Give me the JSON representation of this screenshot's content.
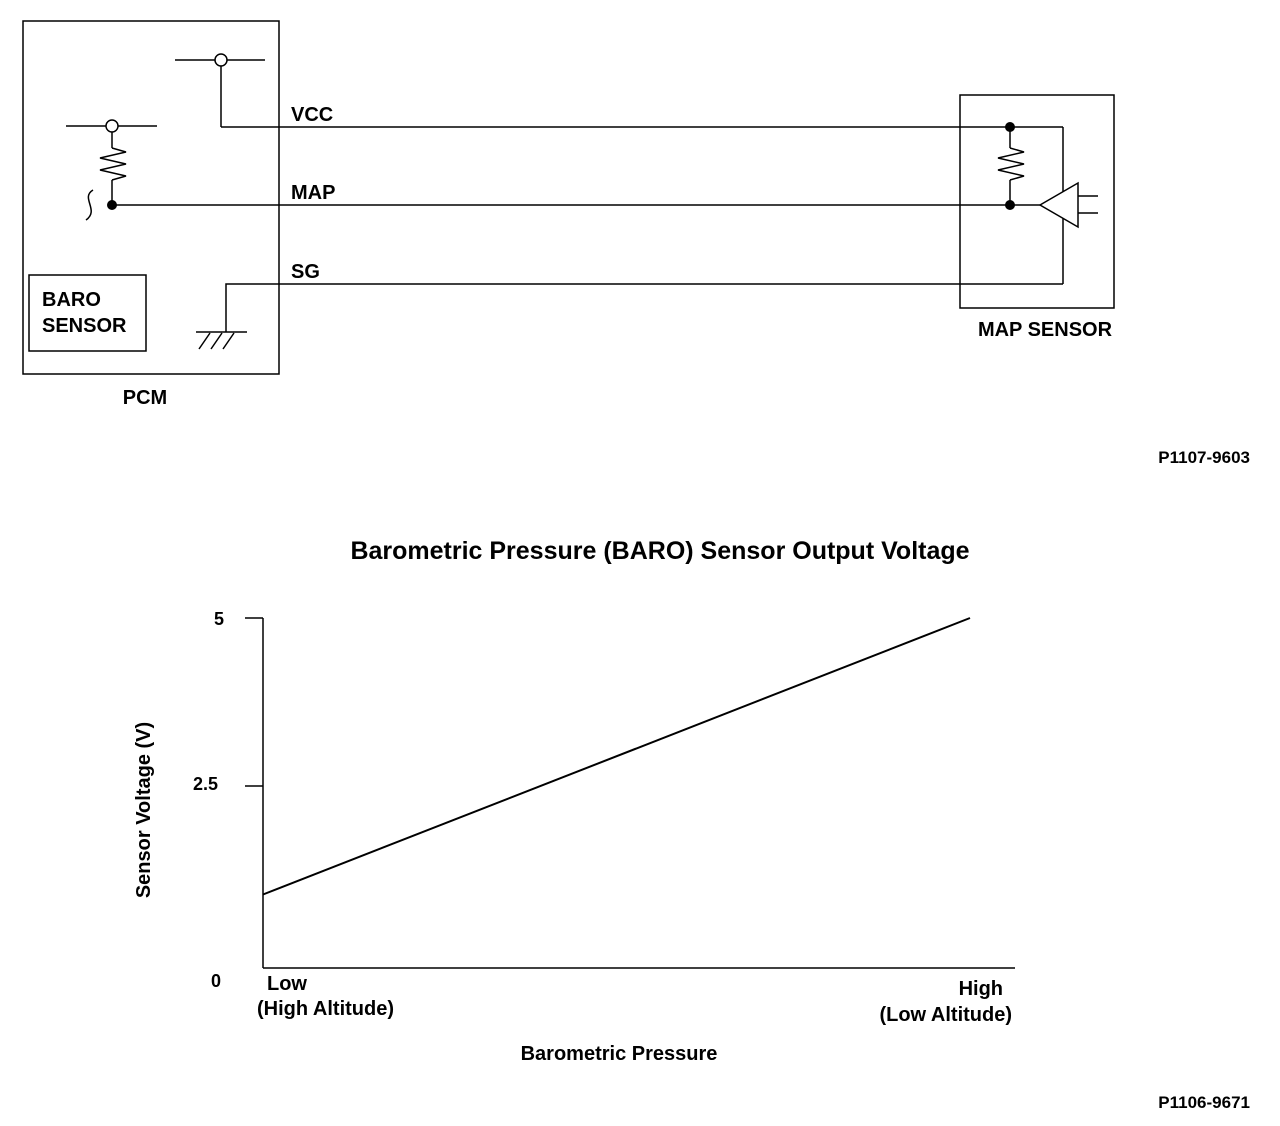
{
  "schematic": {
    "pcm_label": "PCM",
    "baro_label_line1": "BARO",
    "baro_label_line2": "SENSOR",
    "map_sensor_label": "MAP SENSOR",
    "wire_vcc": "VCC",
    "wire_map": "MAP",
    "wire_sg": "SG",
    "figure_code": "P1107-9603"
  },
  "chart_data": {
    "type": "line",
    "title": "Barometric Pressure (BARO) Sensor Output Voltage",
    "xlabel": "Barometric Pressure",
    "ylabel": "Sensor Voltage (V)",
    "x_categories": [
      "Low",
      "High"
    ],
    "x_low_label_line1": "Low",
    "x_low_label_line2": "(High Altitude)",
    "x_high_label_line1": "High",
    "x_high_label_line2": "(Low Altitude)",
    "y_ticks": [
      "0",
      "2.5",
      "5"
    ],
    "ylim": [
      0,
      5
    ],
    "x": [
      0,
      1
    ],
    "y": [
      1.05,
      5.0
    ],
    "grid": false,
    "figure_code": "P1106-9671"
  }
}
